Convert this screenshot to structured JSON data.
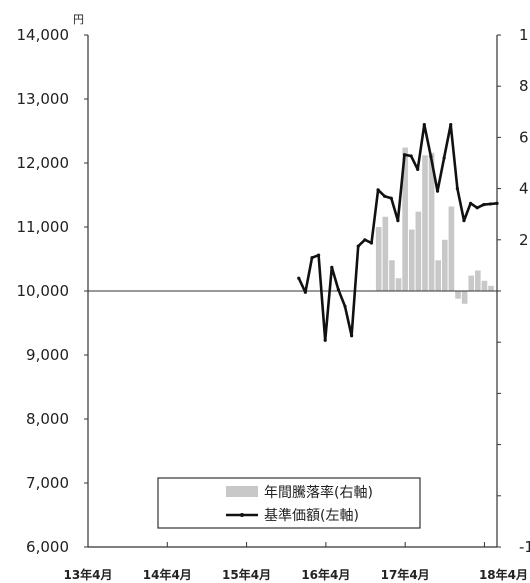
{
  "chart_data": {
    "type": "line",
    "left_axis": {
      "unit": "円",
      "ylim": [
        6000,
        14000
      ],
      "ticks": [
        "6,000",
        "7,000",
        "8,000",
        "9,000",
        "10,000",
        "11,000",
        "12,000",
        "13,000",
        "14,000"
      ]
    },
    "right_axis": {
      "ylim": [
        -10,
        10
      ],
      "ticks": [
        "1",
        "8",
        "6",
        "4",
        "2",
        "",
        "",
        "",
        "",
        "",
        "-1"
      ]
    },
    "x_axis": {
      "ticks": [
        "13年4月",
        "14年4月",
        "15年4月",
        "16年4月",
        "17年4月",
        "18年4月"
      ]
    },
    "grid": false,
    "series": [
      {
        "name": "基準価額(左軸)",
        "type": "line",
        "axis": "left",
        "color": "#111111",
        "x": [
          31.9,
          32.9,
          33.9,
          34.9,
          35.9,
          36.9,
          37.9,
          38.9,
          39.9,
          40.9,
          41.9,
          42.9,
          43.9,
          44.9,
          45.9,
          46.9,
          47.9,
          48.9,
          49.9,
          50.9,
          51.9,
          52.9,
          53.9,
          54.9,
          55.9,
          56.9,
          57.9,
          58.9,
          59.9,
          60.9,
          61.9
        ],
        "values": [
          10200,
          9980,
          10520,
          10560,
          9230,
          10370,
          10020,
          9760,
          9300,
          10700,
          10800,
          10750,
          11580,
          11480,
          11450,
          11100,
          12130,
          12110,
          11900,
          12600,
          12100,
          11560,
          12080,
          12600,
          11600,
          11100,
          11370,
          11300,
          11350,
          11360,
          11370
        ]
      },
      {
        "name": "年間騰落率(右軸)",
        "type": "bar",
        "axis": "right",
        "color": "#c8c8c8",
        "x": [
          44,
          45,
          46,
          47,
          48,
          49,
          50,
          51,
          52,
          53,
          54,
          55,
          56,
          57,
          58,
          59,
          60,
          61
        ],
        "values": [
          2.5,
          2.9,
          1.2,
          0.5,
          5.6,
          2.4,
          3.1,
          5.3,
          5.4,
          1.2,
          2.0,
          3.3,
          -0.3,
          -0.5,
          0.6,
          0.8,
          0.4,
          0.2
        ]
      }
    ],
    "legend": {
      "position": "bottom-right",
      "entries": [
        "年間騰落率(右軸)",
        "基準価額(左軸)"
      ]
    }
  }
}
